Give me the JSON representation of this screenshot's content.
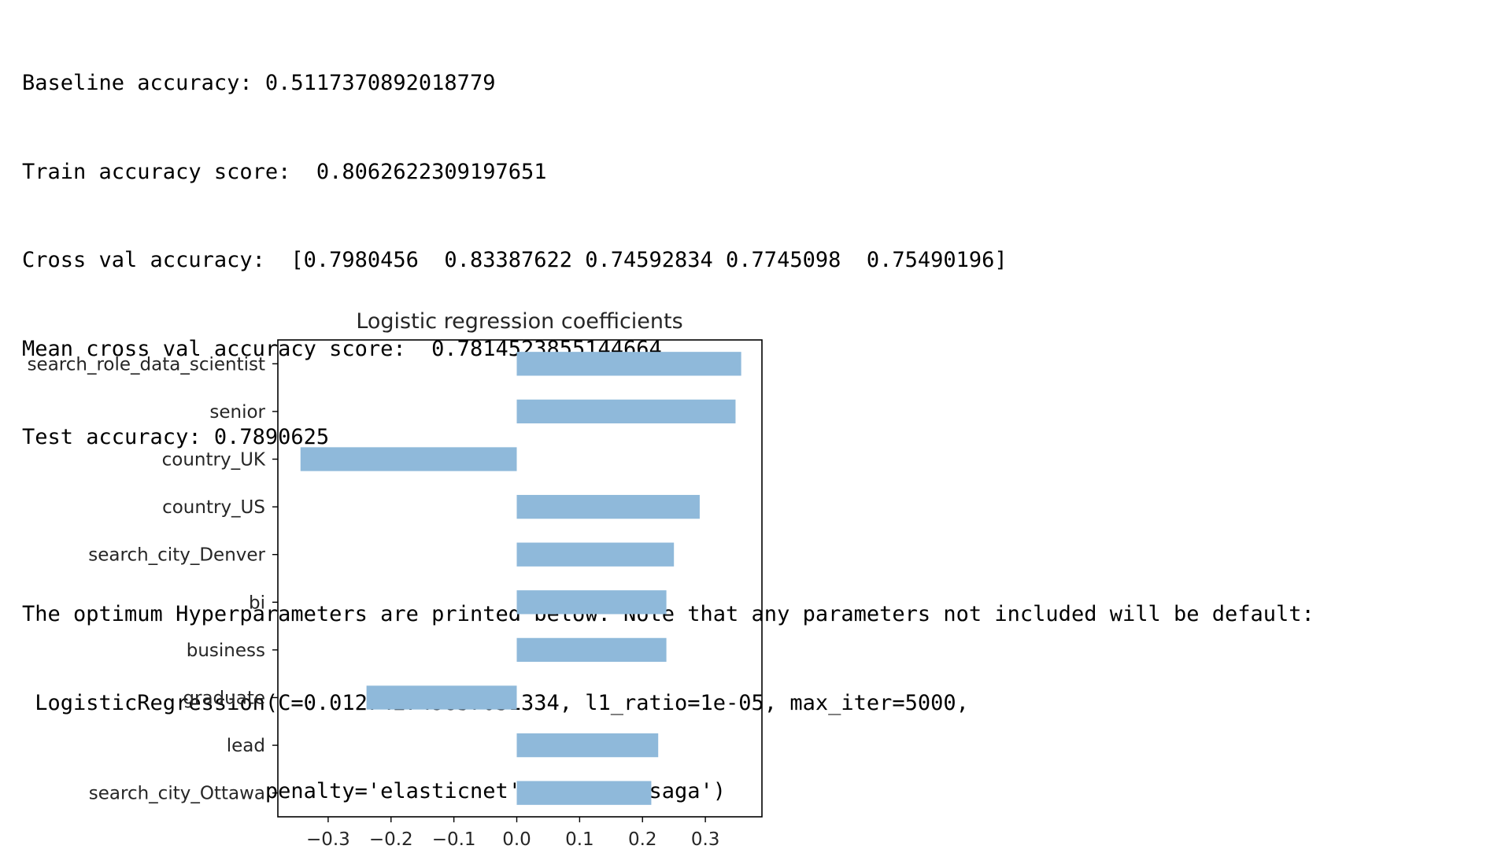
{
  "output": {
    "lines": [
      "Baseline accuracy: 0.5117370892018779",
      "Train accuracy score:  0.8062622309197651",
      "Cross val accuracy:  [0.7980456  0.83387622 0.74592834 0.7745098  0.75490196]",
      "Mean cross val accuracy score:  0.7814523855144664",
      "Test accuracy: 0.7890625"
    ],
    "hyper_lines": [
      "The optimum Hyperparameters are printed below. Note that any parameters not included will be default:",
      " LogisticRegression(C=0.012742749857031334, l1_ratio=1e-05, max_iter=5000,",
      "                   penalty='elasticnet', solver='saga')"
    ]
  },
  "chart_data": {
    "type": "bar",
    "orientation": "horizontal",
    "title": "Logistic regression coefficients",
    "xlabel": "",
    "ylabel": "",
    "categories": [
      "search_role_data_scientist",
      "senior",
      "country_UK",
      "country_US",
      "search_city_Denver",
      "bi",
      "business",
      "graduate",
      "lead",
      "search_city_Ottawa"
    ],
    "values": [
      0.357,
      0.348,
      -0.344,
      0.291,
      0.25,
      0.238,
      0.238,
      -0.239,
      0.225,
      0.214
    ],
    "xlim": [
      -0.38,
      0.39
    ],
    "xticks": [
      -0.3,
      -0.2,
      -0.1,
      0.0,
      0.1,
      0.2,
      0.3
    ],
    "xtick_labels": [
      "−0.3",
      "−0.2",
      "−0.1",
      "0.0",
      "0.1",
      "0.2",
      "0.3"
    ],
    "bar_color": "#8fb9da",
    "grid": false,
    "legend": "none"
  }
}
